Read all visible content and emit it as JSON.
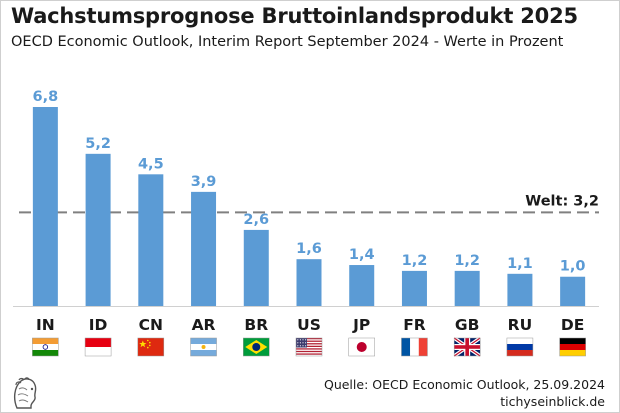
{
  "header": {
    "title": "Wachstumsprognose Bruttoinlandsprodukt 2025",
    "subtitle": "OECD Economic Outlook, Interim Report September 2024 - Werte in Prozent"
  },
  "footer": {
    "source": "Quelle: OECD Economic Outlook, 25.09.2024",
    "brand": "tichyseinblick.de"
  },
  "colors": {
    "bar": "#5b9bd5",
    "label": "#5b9bd5",
    "reference": "#808080"
  },
  "chart_data": {
    "type": "bar",
    "title": "Wachstumsprognose Bruttoinlandsprodukt 2025",
    "subtitle": "OECD Economic Outlook, Interim Report September 2024 - Werte in Prozent",
    "categories": [
      "IN",
      "ID",
      "CN",
      "AR",
      "BR",
      "US",
      "JP",
      "FR",
      "GB",
      "RU",
      "DE"
    ],
    "values": [
      6.8,
      5.2,
      4.5,
      3.9,
      2.6,
      1.6,
      1.4,
      1.2,
      1.2,
      1.1,
      1.0
    ],
    "value_labels": [
      "6,8",
      "5,2",
      "4,5",
      "3,9",
      "2,6",
      "1,6",
      "1,4",
      "1,2",
      "1,2",
      "1,1",
      "1,0"
    ],
    "flags": [
      "flag-india-icon",
      "flag-indonesia-icon",
      "flag-china-icon",
      "flag-argentina-icon",
      "flag-brazil-icon",
      "flag-usa-icon",
      "flag-japan-icon",
      "flag-france-icon",
      "flag-uk-icon",
      "flag-russia-icon",
      "flag-germany-icon"
    ],
    "reference_line": {
      "label": "Welt: 3,2",
      "value": 3.2
    },
    "xlabel": "",
    "ylabel": "",
    "ylim": [
      0,
      6.8
    ],
    "grid": false,
    "legend": "none"
  }
}
